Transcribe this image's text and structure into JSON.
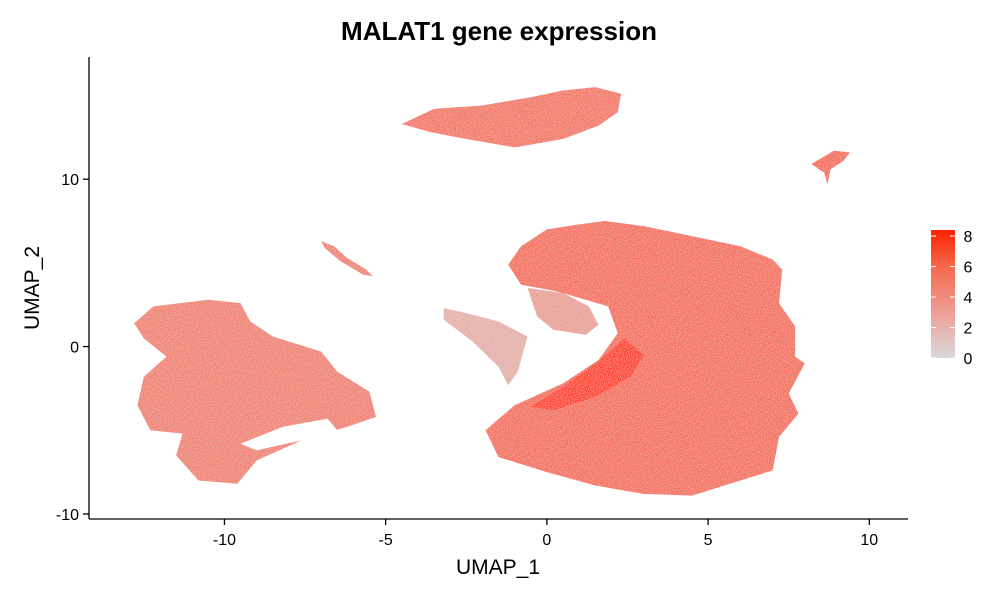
{
  "chart_data": {
    "type": "scatter",
    "title": "MALAT1 gene expression",
    "xlabel": "UMAP_1",
    "ylabel": "UMAP_2",
    "xlim": [
      -14.2,
      11.2
    ],
    "ylim": [
      -10.3,
      17.3
    ],
    "x_ticks": [
      -10,
      -5,
      0,
      5,
      10
    ],
    "y_ticks": [
      -10,
      0,
      10
    ],
    "x_tick_labels": [
      "-10",
      "-5",
      "0",
      "5",
      "10"
    ],
    "y_tick_labels": [
      "-10",
      "0",
      "10"
    ],
    "grid": false,
    "legend": {
      "placement": "right",
      "type": "colorbar",
      "range": [
        0,
        8.4
      ],
      "ticks": [
        0,
        2,
        4,
        6,
        8
      ],
      "tick_labels": [
        "0",
        "2",
        "4",
        "6",
        "8"
      ],
      "color_low": "#d9d9d9",
      "color_high": "#ff2200"
    },
    "clusters": [
      {
        "id": "top-cluster",
        "center": [
          -0.8,
          13.2
        ],
        "polygon": [
          [
            -4.5,
            13.3
          ],
          [
            -3.5,
            14.2
          ],
          [
            -2.0,
            14.4
          ],
          [
            -0.5,
            14.9
          ],
          [
            0.5,
            15.3
          ],
          [
            1.5,
            15.5
          ],
          [
            2.3,
            15.1
          ],
          [
            2.2,
            14.0
          ],
          [
            1.6,
            13.2
          ],
          [
            0.5,
            12.4
          ],
          [
            -1.0,
            11.9
          ],
          [
            -2.5,
            12.4
          ],
          [
            -3.6,
            12.8
          ]
        ],
        "expression": 5.2
      },
      {
        "id": "small-top-right",
        "center": [
          8.9,
          11.1
        ],
        "polygon": [
          [
            8.2,
            10.9
          ],
          [
            8.9,
            11.7
          ],
          [
            9.4,
            11.6
          ],
          [
            9.2,
            11.1
          ],
          [
            8.8,
            10.6
          ],
          [
            8.7,
            9.7
          ],
          [
            8.6,
            10.4
          ]
        ],
        "expression": 5.8
      },
      {
        "id": "thin-strand-left",
        "center": [
          -6.6,
          5.2
        ],
        "polygon": [
          [
            -7.0,
            6.3
          ],
          [
            -6.6,
            6.0
          ],
          [
            -6.2,
            5.3
          ],
          [
            -5.6,
            4.6
          ],
          [
            -5.4,
            4.2
          ],
          [
            -5.7,
            4.3
          ],
          [
            -6.4,
            5.1
          ],
          [
            -6.9,
            5.9
          ]
        ],
        "expression": 4.5
      },
      {
        "id": "left-cluster",
        "center": [
          -9.8,
          -3.0
        ],
        "polygon": [
          [
            -12.8,
            1.4
          ],
          [
            -12.2,
            2.4
          ],
          [
            -10.5,
            2.8
          ],
          [
            -9.5,
            2.6
          ],
          [
            -9.2,
            1.5
          ],
          [
            -8.5,
            0.6
          ],
          [
            -7.0,
            -0.3
          ],
          [
            -6.5,
            -1.5
          ],
          [
            -5.5,
            -2.7
          ],
          [
            -5.3,
            -4.2
          ],
          [
            -6.2,
            -4.8
          ],
          [
            -7.5,
            -5.5
          ],
          [
            -9.0,
            -6.8
          ],
          [
            -9.6,
            -8.2
          ],
          [
            -10.8,
            -8.0
          ],
          [
            -11.5,
            -6.5
          ],
          [
            -11.3,
            -5.2
          ],
          [
            -12.3,
            -5.0
          ],
          [
            -12.7,
            -3.5
          ],
          [
            -12.5,
            -1.8
          ],
          [
            -11.8,
            -0.6
          ],
          [
            -12.5,
            0.5
          ]
        ],
        "expression": 4.6
      },
      {
        "id": "left-cluster-hole",
        "center": [
          -8.0,
          -5.0
        ],
        "polygon": [
          [
            -9.5,
            -5.8
          ],
          [
            -8.2,
            -4.8
          ],
          [
            -6.8,
            -4.3
          ],
          [
            -6.5,
            -5.0
          ],
          [
            -7.6,
            -5.6
          ],
          [
            -9.0,
            -6.2
          ]
        ],
        "expression": 0
      },
      {
        "id": "big-right-cluster",
        "center": [
          3.5,
          -2.0
        ],
        "polygon": [
          [
            -0.8,
            6.0
          ],
          [
            0.0,
            7.0
          ],
          [
            1.0,
            7.3
          ],
          [
            1.8,
            7.5
          ],
          [
            3.0,
            7.2
          ],
          [
            4.5,
            6.6
          ],
          [
            6.0,
            6.0
          ],
          [
            7.0,
            5.2
          ],
          [
            7.3,
            4.6
          ],
          [
            7.2,
            2.6
          ],
          [
            7.7,
            1.2
          ],
          [
            7.7,
            -0.6
          ],
          [
            8.0,
            -1.0
          ],
          [
            7.5,
            -2.8
          ],
          [
            7.8,
            -4.0
          ],
          [
            7.2,
            -5.4
          ],
          [
            7.0,
            -7.4
          ],
          [
            5.5,
            -8.3
          ],
          [
            4.5,
            -8.9
          ],
          [
            3.0,
            -8.8
          ],
          [
            1.5,
            -8.3
          ],
          [
            0.0,
            -7.5
          ],
          [
            -1.5,
            -6.6
          ],
          [
            -1.9,
            -5.0
          ],
          [
            -1.0,
            -3.5
          ],
          [
            0.5,
            -2.2
          ],
          [
            1.6,
            -0.8
          ],
          [
            2.2,
            0.8
          ],
          [
            1.9,
            2.4
          ],
          [
            0.3,
            3.3
          ],
          [
            -0.8,
            3.7
          ],
          [
            -1.2,
            4.9
          ]
        ],
        "expression": 5.6
      },
      {
        "id": "diagonal-strand",
        "center": [
          -1.3,
          0.8
        ],
        "polygon": [
          [
            -3.2,
            2.3
          ],
          [
            -2.5,
            2.0
          ],
          [
            -1.5,
            1.5
          ],
          [
            -0.6,
            0.6
          ],
          [
            -0.9,
            -1.5
          ],
          [
            -1.2,
            -2.3
          ],
          [
            -1.5,
            -1.2
          ],
          [
            -2.3,
            0.3
          ],
          [
            -3.2,
            1.6
          ]
        ],
        "expression": 2.2
      },
      {
        "id": "inner-wing",
        "center": [
          0.3,
          2.0
        ],
        "polygon": [
          [
            -0.6,
            3.5
          ],
          [
            0.5,
            3.2
          ],
          [
            1.3,
            2.4
          ],
          [
            1.6,
            1.3
          ],
          [
            1.2,
            0.7
          ],
          [
            0.2,
            1.0
          ],
          [
            -0.3,
            1.8
          ]
        ],
        "expression": 3.0
      },
      {
        "id": "hotspot-band",
        "center": [
          1.8,
          -1.5
        ],
        "polygon": [
          [
            -0.5,
            -3.6
          ],
          [
            0.5,
            -2.4
          ],
          [
            1.6,
            -0.9
          ],
          [
            2.4,
            0.5
          ],
          [
            3.0,
            -0.5
          ],
          [
            2.6,
            -1.8
          ],
          [
            1.5,
            -3.0
          ],
          [
            0.2,
            -3.8
          ]
        ],
        "expression": 8.0
      }
    ]
  }
}
